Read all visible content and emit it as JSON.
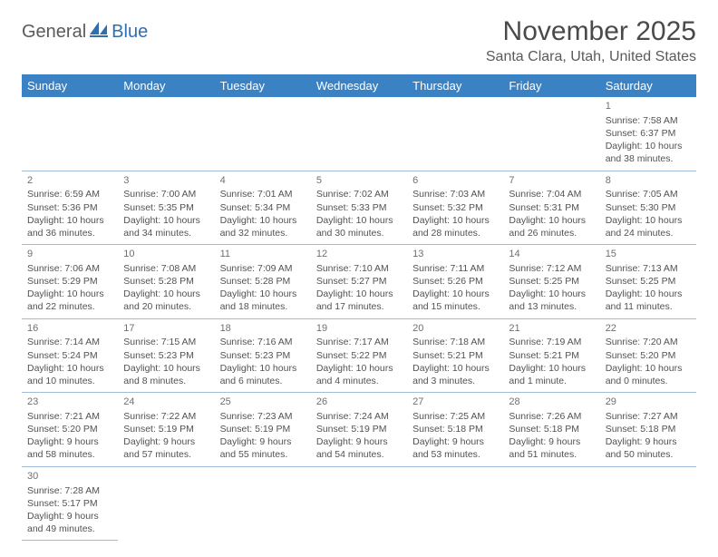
{
  "logo": {
    "part1": "General",
    "part2": "Blue"
  },
  "title": "November 2025",
  "location": "Santa Clara, Utah, United States",
  "header_bg": "#3b82c4",
  "weekdays": [
    "Sunday",
    "Monday",
    "Tuesday",
    "Wednesday",
    "Thursday",
    "Friday",
    "Saturday"
  ],
  "rows": [
    [
      null,
      null,
      null,
      null,
      null,
      null,
      {
        "n": "1",
        "sr": "Sunrise: 7:58 AM",
        "ss": "Sunset: 6:37 PM",
        "d1": "Daylight: 10 hours",
        "d2": "and 38 minutes."
      }
    ],
    [
      {
        "n": "2",
        "sr": "Sunrise: 6:59 AM",
        "ss": "Sunset: 5:36 PM",
        "d1": "Daylight: 10 hours",
        "d2": "and 36 minutes."
      },
      {
        "n": "3",
        "sr": "Sunrise: 7:00 AM",
        "ss": "Sunset: 5:35 PM",
        "d1": "Daylight: 10 hours",
        "d2": "and 34 minutes."
      },
      {
        "n": "4",
        "sr": "Sunrise: 7:01 AM",
        "ss": "Sunset: 5:34 PM",
        "d1": "Daylight: 10 hours",
        "d2": "and 32 minutes."
      },
      {
        "n": "5",
        "sr": "Sunrise: 7:02 AM",
        "ss": "Sunset: 5:33 PM",
        "d1": "Daylight: 10 hours",
        "d2": "and 30 minutes."
      },
      {
        "n": "6",
        "sr": "Sunrise: 7:03 AM",
        "ss": "Sunset: 5:32 PM",
        "d1": "Daylight: 10 hours",
        "d2": "and 28 minutes."
      },
      {
        "n": "7",
        "sr": "Sunrise: 7:04 AM",
        "ss": "Sunset: 5:31 PM",
        "d1": "Daylight: 10 hours",
        "d2": "and 26 minutes."
      },
      {
        "n": "8",
        "sr": "Sunrise: 7:05 AM",
        "ss": "Sunset: 5:30 PM",
        "d1": "Daylight: 10 hours",
        "d2": "and 24 minutes."
      }
    ],
    [
      {
        "n": "9",
        "sr": "Sunrise: 7:06 AM",
        "ss": "Sunset: 5:29 PM",
        "d1": "Daylight: 10 hours",
        "d2": "and 22 minutes."
      },
      {
        "n": "10",
        "sr": "Sunrise: 7:08 AM",
        "ss": "Sunset: 5:28 PM",
        "d1": "Daylight: 10 hours",
        "d2": "and 20 minutes."
      },
      {
        "n": "11",
        "sr": "Sunrise: 7:09 AM",
        "ss": "Sunset: 5:28 PM",
        "d1": "Daylight: 10 hours",
        "d2": "and 18 minutes."
      },
      {
        "n": "12",
        "sr": "Sunrise: 7:10 AM",
        "ss": "Sunset: 5:27 PM",
        "d1": "Daylight: 10 hours",
        "d2": "and 17 minutes."
      },
      {
        "n": "13",
        "sr": "Sunrise: 7:11 AM",
        "ss": "Sunset: 5:26 PM",
        "d1": "Daylight: 10 hours",
        "d2": "and 15 minutes."
      },
      {
        "n": "14",
        "sr": "Sunrise: 7:12 AM",
        "ss": "Sunset: 5:25 PM",
        "d1": "Daylight: 10 hours",
        "d2": "and 13 minutes."
      },
      {
        "n": "15",
        "sr": "Sunrise: 7:13 AM",
        "ss": "Sunset: 5:25 PM",
        "d1": "Daylight: 10 hours",
        "d2": "and 11 minutes."
      }
    ],
    [
      {
        "n": "16",
        "sr": "Sunrise: 7:14 AM",
        "ss": "Sunset: 5:24 PM",
        "d1": "Daylight: 10 hours",
        "d2": "and 10 minutes."
      },
      {
        "n": "17",
        "sr": "Sunrise: 7:15 AM",
        "ss": "Sunset: 5:23 PM",
        "d1": "Daylight: 10 hours",
        "d2": "and 8 minutes."
      },
      {
        "n": "18",
        "sr": "Sunrise: 7:16 AM",
        "ss": "Sunset: 5:23 PM",
        "d1": "Daylight: 10 hours",
        "d2": "and 6 minutes."
      },
      {
        "n": "19",
        "sr": "Sunrise: 7:17 AM",
        "ss": "Sunset: 5:22 PM",
        "d1": "Daylight: 10 hours",
        "d2": "and 4 minutes."
      },
      {
        "n": "20",
        "sr": "Sunrise: 7:18 AM",
        "ss": "Sunset: 5:21 PM",
        "d1": "Daylight: 10 hours",
        "d2": "and 3 minutes."
      },
      {
        "n": "21",
        "sr": "Sunrise: 7:19 AM",
        "ss": "Sunset: 5:21 PM",
        "d1": "Daylight: 10 hours",
        "d2": "and 1 minute."
      },
      {
        "n": "22",
        "sr": "Sunrise: 7:20 AM",
        "ss": "Sunset: 5:20 PM",
        "d1": "Daylight: 10 hours",
        "d2": "and 0 minutes."
      }
    ],
    [
      {
        "n": "23",
        "sr": "Sunrise: 7:21 AM",
        "ss": "Sunset: 5:20 PM",
        "d1": "Daylight: 9 hours",
        "d2": "and 58 minutes."
      },
      {
        "n": "24",
        "sr": "Sunrise: 7:22 AM",
        "ss": "Sunset: 5:19 PM",
        "d1": "Daylight: 9 hours",
        "d2": "and 57 minutes."
      },
      {
        "n": "25",
        "sr": "Sunrise: 7:23 AM",
        "ss": "Sunset: 5:19 PM",
        "d1": "Daylight: 9 hours",
        "d2": "and 55 minutes."
      },
      {
        "n": "26",
        "sr": "Sunrise: 7:24 AM",
        "ss": "Sunset: 5:19 PM",
        "d1": "Daylight: 9 hours",
        "d2": "and 54 minutes."
      },
      {
        "n": "27",
        "sr": "Sunrise: 7:25 AM",
        "ss": "Sunset: 5:18 PM",
        "d1": "Daylight: 9 hours",
        "d2": "and 53 minutes."
      },
      {
        "n": "28",
        "sr": "Sunrise: 7:26 AM",
        "ss": "Sunset: 5:18 PM",
        "d1": "Daylight: 9 hours",
        "d2": "and 51 minutes."
      },
      {
        "n": "29",
        "sr": "Sunrise: 7:27 AM",
        "ss": "Sunset: 5:18 PM",
        "d1": "Daylight: 9 hours",
        "d2": "and 50 minutes."
      }
    ],
    [
      {
        "n": "30",
        "sr": "Sunrise: 7:28 AM",
        "ss": "Sunset: 5:17 PM",
        "d1": "Daylight: 9 hours",
        "d2": "and 49 minutes."
      },
      null,
      null,
      null,
      null,
      null,
      null
    ]
  ]
}
